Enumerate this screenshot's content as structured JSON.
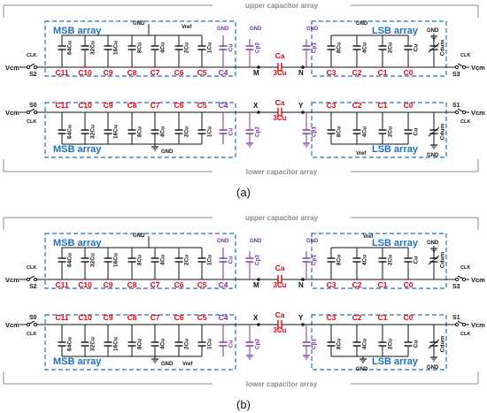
{
  "panels": [
    {
      "id": "a",
      "caption": "(a)",
      "upper": {
        "title": "upper capacitor array",
        "msb_title": "MSB array",
        "lsb_title": "LSB array",
        "msb_caps": [
          {
            "name": "C11",
            "value": "64Cu"
          },
          {
            "name": "C10",
            "value": "32Cu"
          },
          {
            "name": "C9",
            "value": "16Cu"
          },
          {
            "name": "C8",
            "value": "8Cu"
          },
          {
            "name": "C7",
            "value": "4Cu"
          },
          {
            "name": "C6",
            "value": "2Cu"
          },
          {
            "name": "C5",
            "value": "1Cu"
          }
        ],
        "c4": {
          "name": "C4",
          "value": "Cu",
          "top": "GND"
        },
        "cp2": {
          "name": "Cp2",
          "top": "GND"
        },
        "cp1": {
          "name": "Cp1",
          "top": "GND"
        },
        "ca_name": "Ca",
        "ca_value": "3Cu",
        "node_left": "M",
        "node_right": "N",
        "lsb_caps": [
          {
            "name": "C3",
            "value": "8Cu"
          },
          {
            "name": "C2",
            "value": "4Cu"
          },
          {
            "name": "C1",
            "value": "2Cu"
          },
          {
            "name": "C0",
            "value": "Cu"
          }
        ],
        "cdum": "Cdum",
        "msb_gnd": "GND",
        "msb_vref": "Vref",
        "lsb_gnd": "GND",
        "vcm_left": "Vcm",
        "vcm_right": "Vcm",
        "clk_left": "CLK",
        "clk_right": "CLK",
        "switch_left": "S2",
        "switch_right": "S3"
      },
      "lower": {
        "title": "lower capacitor array",
        "msb_title": "MSB array",
        "lsb_title": "LSB array",
        "msb_caps": [
          {
            "name": "C11",
            "value": "64Cu"
          },
          {
            "name": "C10",
            "value": "32Cu"
          },
          {
            "name": "C9",
            "value": "16Cu"
          },
          {
            "name": "C8",
            "value": "8Cu"
          },
          {
            "name": "C7",
            "value": "4Cu"
          },
          {
            "name": "C6",
            "value": "2Cu"
          },
          {
            "name": "C5",
            "value": "1Cu"
          }
        ],
        "c4": {
          "name": "C4",
          "value": "Cu"
        },
        "cp2": {
          "name": "Cp2"
        },
        "cp1": {
          "name": "Cp1"
        },
        "ca_name": "Ca",
        "ca_value": "3Cu",
        "node_left": "X",
        "node_right": "Y",
        "lsb_caps": [
          {
            "name": "C3",
            "value": "8Cu"
          },
          {
            "name": "C2",
            "value": "4Cu"
          },
          {
            "name": "C1",
            "value": "2Cu"
          },
          {
            "name": "C0",
            "value": "Cu"
          }
        ],
        "cdum": "Cdum",
        "msb_gnd": "GND",
        "lsb_vref": "Vref",
        "lsb_gnd": "GND",
        "vcm_left": "Vcm",
        "vcm_right": "Vcm",
        "clk_left": "CLK",
        "clk_right": "CLK",
        "switch_left": "S0",
        "switch_right": "S1"
      }
    },
    {
      "id": "b",
      "caption": "(b)",
      "upper": {
        "title": "upper capacitor array",
        "msb_title": "MSB array",
        "lsb_title": "LSB array",
        "msb_caps": [
          {
            "name": "C11",
            "value": "64Cu"
          },
          {
            "name": "C10",
            "value": "32Cu"
          },
          {
            "name": "C9",
            "value": "16Cu"
          },
          {
            "name": "C8",
            "value": "8Cu"
          },
          {
            "name": "C7",
            "value": "4Cu"
          },
          {
            "name": "C6",
            "value": "2Cu"
          },
          {
            "name": "C5",
            "value": "1Cu"
          }
        ],
        "c4": {
          "name": "C4",
          "value": "Cu",
          "top": "GND"
        },
        "cp2": {
          "name": "Cp2",
          "top": "GND"
        },
        "cp1": {
          "name": "Cp1",
          "top": "GND"
        },
        "ca_name": "Ca",
        "ca_value": "3Cu",
        "node_left": "M",
        "node_right": "N",
        "lsb_caps": [
          {
            "name": "C3",
            "value": "8Cu"
          },
          {
            "name": "C2",
            "value": "4Cu"
          },
          {
            "name": "C1",
            "value": "2Cu"
          },
          {
            "name": "C0",
            "value": "Cu"
          }
        ],
        "cdum": "Cdum",
        "msb_gnd": "GND",
        "lsb_vref": "Vref",
        "lsb_gnd": "GND",
        "vcm_left": "Vcm",
        "vcm_right": "Vcm",
        "clk_left": "CLK",
        "clk_right": "CLK",
        "switch_left": "S2",
        "switch_right": "S3"
      },
      "lower": {
        "title": "lower capacitor array",
        "msb_title": "MSB array",
        "lsb_title": "LSB array",
        "msb_caps": [
          {
            "name": "C11",
            "value": "64Cu"
          },
          {
            "name": "C10",
            "value": "32Cu"
          },
          {
            "name": "C9",
            "value": "16Cu"
          },
          {
            "name": "C8",
            "value": "8Cu"
          },
          {
            "name": "C7",
            "value": "4Cu"
          },
          {
            "name": "C6",
            "value": "2Cu"
          },
          {
            "name": "C5",
            "value": "1Cu"
          }
        ],
        "c4": {
          "name": "C4",
          "value": "Cu"
        },
        "cp2": {
          "name": "Cp2"
        },
        "cp1": {
          "name": "Cp1"
        },
        "ca_name": "Ca",
        "ca_value": "3Cu",
        "node_left": "X",
        "node_right": "Y",
        "lsb_caps": [
          {
            "name": "C3",
            "value": "8Cu"
          },
          {
            "name": "C2",
            "value": "4Cu"
          },
          {
            "name": "C1",
            "value": "2Cu"
          },
          {
            "name": "C0",
            "value": "Cu"
          }
        ],
        "cdum": "Cdum",
        "msb_gnd": "GND",
        "msb_vref": "Vref",
        "lsb_gnd": "GND",
        "lsb_gnd2": "GND",
        "vcm_left": "Vcm",
        "vcm_right": "Vcm",
        "clk_left": "CLK",
        "clk_right": "CLK",
        "switch_left": "S0",
        "switch_right": "S1"
      }
    }
  ],
  "colors": {
    "msb_label": "#e8000b",
    "parasitic": "#7a2e9e",
    "attenuation": "#e8000b",
    "array_box": "#1f6fbf",
    "array_title": "#1f6fbf",
    "frame": "#8a8a8a"
  }
}
